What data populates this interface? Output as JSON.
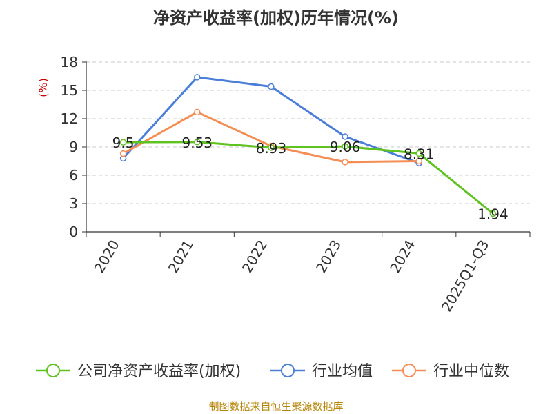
{
  "chart_data": {
    "type": "line",
    "title": "净资产收益率(加权)历年情况(%)",
    "ylabel": "(%)",
    "xlabel": "",
    "categories": [
      "2020",
      "2021",
      "2022",
      "2023",
      "2024",
      "2025Q1-Q3"
    ],
    "ylim": [
      0,
      18
    ],
    "yticks": [
      0,
      3,
      6,
      9,
      12,
      15,
      18
    ],
    "grid": true,
    "legend_position": "bottom",
    "series": [
      {
        "name": "公司净资产收益率(加权)",
        "color": "#5ec21f",
        "values": [
          9.5,
          9.53,
          8.93,
          9.06,
          8.31,
          1.94
        ],
        "labels": [
          "9.5",
          "9.53",
          "8.93",
          "9.06",
          "8.31",
          "1.94"
        ]
      },
      {
        "name": "行业均值",
        "color": "#4a7ed8",
        "values": [
          7.8,
          16.4,
          15.4,
          10.1,
          7.3,
          null
        ]
      },
      {
        "name": "行业中位数",
        "color": "#f58d55",
        "values": [
          8.3,
          12.7,
          9.1,
          7.4,
          7.5,
          null
        ]
      }
    ]
  },
  "footer": "制图数据来自恒生聚源数据库"
}
